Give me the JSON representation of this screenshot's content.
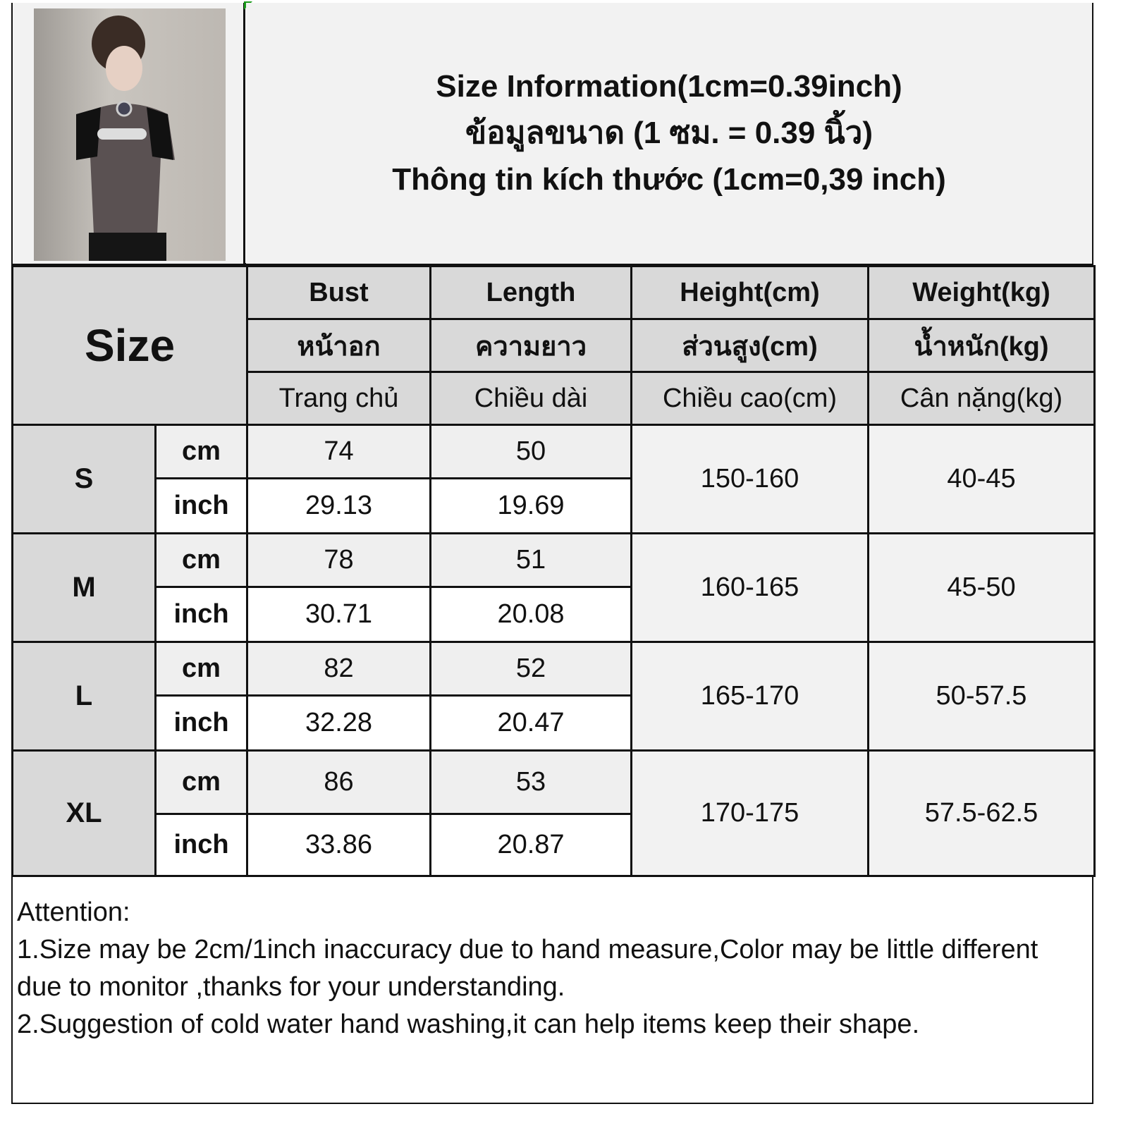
{
  "title_lines": [
    "Size Information(1cm=0.39inch)",
    "ข้อมูลขนาด (1 ซม. = 0.39 นิ้ว)",
    "Thông tin kích thước (1cm=0,39 inch)"
  ],
  "size_label": "Size",
  "columns": [
    {
      "en": "Bust",
      "th": "หน้าอก",
      "vi": "Trang chủ"
    },
    {
      "en": "Length",
      "th": "ความยาว",
      "vi": "Chiều dài"
    },
    {
      "en": "Height(cm)",
      "th": "ส่วนสูง(cm)",
      "vi": "Chiều cao(cm)"
    },
    {
      "en": "Weight(kg)",
      "th": "น้ำหนัก(kg)",
      "vi": "Cân nặng(kg)"
    }
  ],
  "units": {
    "cm": "cm",
    "inch": "inch"
  },
  "rows": [
    {
      "size": "S",
      "bust_cm": "74",
      "length_cm": "50",
      "bust_in": "29.13",
      "length_in": "19.69",
      "height": "150-160",
      "weight": "40-45"
    },
    {
      "size": "M",
      "bust_cm": "78",
      "length_cm": "51",
      "bust_in": "30.71",
      "length_in": "20.08",
      "height": "160-165",
      "weight": "45-50"
    },
    {
      "size": "L",
      "bust_cm": "82",
      "length_cm": "52",
      "bust_in": "32.28",
      "length_in": "20.47",
      "height": "165-170",
      "weight": "50-57.5"
    },
    {
      "size": "XL",
      "bust_cm": "86",
      "length_cm": "53",
      "bust_in": "33.86",
      "length_in": "20.87",
      "height": "170-175",
      "weight": "57.5-62.5"
    }
  ],
  "notes": {
    "heading": "Attention:",
    "line1": "1.Size may be 2cm/1inch inaccuracy due to hand measure,Color may be little different due to monitor ,thanks for your understanding.",
    "line2": "2.Suggestion of cold water hand washing,it can help items keep their shape."
  },
  "colors": {
    "header_bg": "#d9d9d9",
    "cm_row_bg": "#efefef",
    "inch_row_bg": "#ffffff",
    "border": "#111111"
  }
}
